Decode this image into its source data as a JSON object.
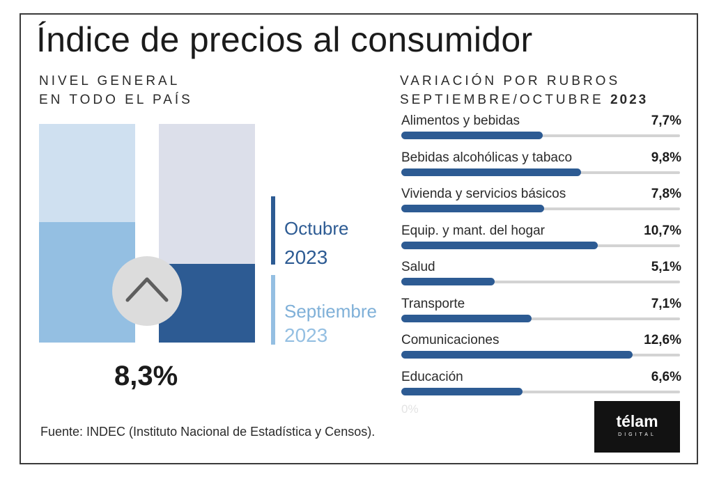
{
  "title": "Índice de precios al consumidor",
  "left_subtitle": {
    "line1": "NIVEL GENERAL",
    "line2": "EN TODO EL PAÍS"
  },
  "right_subtitle": {
    "line1": "VARIACIÓN POR RUBROS",
    "line2_prefix": "SEPTIEMBRE/OCTUBRE",
    "line2_year": "2023"
  },
  "general_value": "8,3%",
  "legend": {
    "october": {
      "name": "Octubre",
      "year": "2023"
    },
    "september": {
      "name": "Septiembre",
      "year": "2023"
    }
  },
  "icons": {
    "trend": "chevron-up-icon"
  },
  "source": "Fuente: INDEC (Instituto Nacional de Estadística y Censos).",
  "logo": {
    "name": "télam",
    "sub": "DIGITAL"
  },
  "colors": {
    "dark_blue": "#2d5b93",
    "light_blue": "#94bfe2",
    "pale_blue": "#cfe0f0",
    "track_gray": "#d3d3d3"
  },
  "chart_data": [
    {
      "type": "bar",
      "title": "NIVEL GENERAL EN TODO EL PAÍS",
      "categories": [
        "Septiembre 2023",
        "Octubre 2023"
      ],
      "values": [
        12.7,
        8.3
      ],
      "value_labels": [
        "",
        "8,3%"
      ],
      "ylim": [
        0,
        23
      ],
      "grid": false,
      "legend": "right"
    },
    {
      "type": "bar",
      "orientation": "horizontal",
      "title": "VARIACIÓN POR RUBROS SEPTIEMBRE/OCTUBRE 2023",
      "categories": [
        "Alimentos y bebidas",
        "Bebidas alcohólicas y tabaco",
        "Vivienda y servicios básicos",
        "Equip. y mant. del hogar",
        "Salud",
        "Transporte",
        "Comunicaciones",
        "Educación"
      ],
      "values": [
        7.7,
        9.8,
        7.8,
        10.7,
        5.1,
        7.1,
        12.6,
        6.6
      ],
      "value_labels": [
        "7,7%",
        "9,8%",
        "7,8%",
        "10,7%",
        "5,1%",
        "7,1%",
        "12,6%",
        "6,6%"
      ],
      "axis_start_label": "0%",
      "xlim": [
        0,
        15.2
      ],
      "grid": false
    }
  ]
}
